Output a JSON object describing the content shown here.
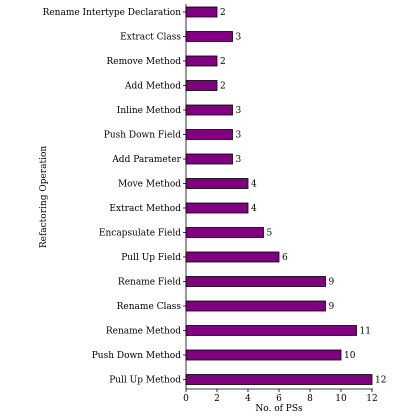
{
  "chart_data": {
    "type": "bar",
    "orientation": "horizontal",
    "categories": [
      "Rename Intertype Declaration",
      "Extract Class",
      "Remove Method",
      "Add Method",
      "Inline Method",
      "Push Down Field",
      "Add Parameter",
      "Move Method",
      "Extract Method",
      "Encapsulate Field",
      "Pull Up Field",
      "Rename Field",
      "Rename Class",
      "Rename Method",
      "Push Down Method",
      "Pull Up Method"
    ],
    "values": [
      2,
      3,
      2,
      2,
      3,
      3,
      3,
      4,
      4,
      5,
      6,
      9,
      9,
      11,
      10,
      12
    ],
    "value_labels": [
      "2",
      "3",
      "2",
      "2",
      "3",
      "3",
      "3",
      "4",
      "4",
      "5",
      "6",
      "9",
      "9",
      "11",
      "10",
      "12"
    ],
    "xlabel": "No. of PSs",
    "ylabel": "Refactoring Operation",
    "xlim": [
      0,
      12
    ],
    "xticks": [
      0,
      2,
      4,
      6,
      8,
      10,
      12
    ],
    "xtick_labels": [
      "0",
      "2",
      "4",
      "6",
      "8",
      "10",
      "12"
    ],
    "grid": false,
    "bar_color": "#800080",
    "bar_edge_color": "#000000"
  }
}
